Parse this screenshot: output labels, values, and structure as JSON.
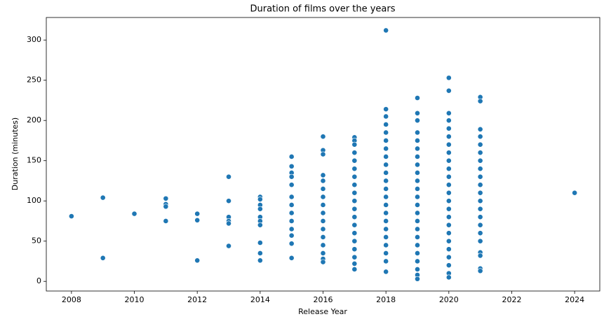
{
  "chart_data": {
    "type": "scatter",
    "title": "Duration of films over the years",
    "x_label": "Release Year",
    "y_label": "Duration (minutes)",
    "color": "#1f77b4",
    "xlim": [
      2007.2,
      2024.8
    ],
    "ylim": [
      -12,
      328
    ],
    "xticks": [
      2008,
      2010,
      2012,
      2014,
      2016,
      2018,
      2020,
      2022,
      2024
    ],
    "yticks": [
      0,
      50,
      100,
      150,
      200,
      250,
      300
    ],
    "x": [
      2008,
      2009,
      2009,
      2010,
      2011,
      2011,
      2011,
      2011,
      2012,
      2012,
      2012,
      2013,
      2013,
      2013,
      2013,
      2013,
      2013,
      2014,
      2014,
      2014,
      2014,
      2014,
      2014,
      2014,
      2014,
      2014,
      2014,
      2015,
      2015,
      2015,
      2015,
      2015,
      2015,
      2015,
      2015,
      2015,
      2015,
      2015,
      2015,
      2015,
      2016,
      2016,
      2016,
      2016,
      2016,
      2016,
      2016,
      2016,
      2016,
      2016,
      2016,
      2016,
      2016,
      2016,
      2016,
      2016,
      2017,
      2017,
      2017,
      2017,
      2017,
      2017,
      2017,
      2017,
      2017,
      2017,
      2017,
      2017,
      2017,
      2017,
      2017,
      2017,
      2017,
      2017,
      2017,
      2018,
      2018,
      2018,
      2018,
      2018,
      2018,
      2018,
      2018,
      2018,
      2018,
      2018,
      2018,
      2018,
      2018,
      2018,
      2018,
      2018,
      2018,
      2018,
      2018,
      2018,
      2018,
      2019,
      2019,
      2019,
      2019,
      2019,
      2019,
      2019,
      2019,
      2019,
      2019,
      2019,
      2019,
      2019,
      2019,
      2019,
      2019,
      2019,
      2019,
      2019,
      2019,
      2019,
      2019,
      2019,
      2020,
      2020,
      2020,
      2020,
      2020,
      2020,
      2020,
      2020,
      2020,
      2020,
      2020,
      2020,
      2020,
      2020,
      2020,
      2020,
      2020,
      2020,
      2020,
      2020,
      2020,
      2020,
      2020,
      2020,
      2021,
      2021,
      2021,
      2021,
      2021,
      2021,
      2021,
      2021,
      2021,
      2021,
      2021,
      2021,
      2021,
      2021,
      2021,
      2021,
      2021,
      2021,
      2021,
      2021,
      2021,
      2024
    ],
    "y": [
      81,
      104,
      29,
      84,
      103,
      96,
      93,
      75,
      84,
      76,
      26,
      130,
      100,
      80,
      75,
      72,
      44,
      105,
      102,
      95,
      90,
      80,
      75,
      70,
      48,
      35,
      26,
      155,
      143,
      135,
      130,
      120,
      105,
      95,
      85,
      75,
      65,
      57,
      47,
      29,
      180,
      163,
      158,
      132,
      125,
      115,
      105,
      95,
      85,
      75,
      65,
      55,
      45,
      35,
      28,
      24,
      179,
      175,
      170,
      160,
      150,
      140,
      130,
      120,
      110,
      100,
      90,
      80,
      70,
      60,
      50,
      40,
      30,
      22,
      15,
      312,
      214,
      205,
      195,
      185,
      175,
      165,
      155,
      145,
      135,
      125,
      115,
      105,
      95,
      85,
      75,
      65,
      55,
      45,
      35,
      25,
      12,
      228,
      209,
      200,
      185,
      175,
      165,
      155,
      145,
      135,
      125,
      115,
      105,
      95,
      85,
      75,
      65,
      55,
      45,
      35,
      25,
      15,
      8,
      3,
      253,
      237,
      209,
      200,
      190,
      180,
      170,
      160,
      150,
      140,
      130,
      120,
      110,
      100,
      90,
      80,
      70,
      60,
      50,
      40,
      30,
      20,
      10,
      5,
      229,
      224,
      189,
      180,
      170,
      160,
      150,
      140,
      130,
      120,
      110,
      100,
      90,
      80,
      70,
      60,
      50,
      36,
      32,
      16,
      13,
      110
    ]
  }
}
